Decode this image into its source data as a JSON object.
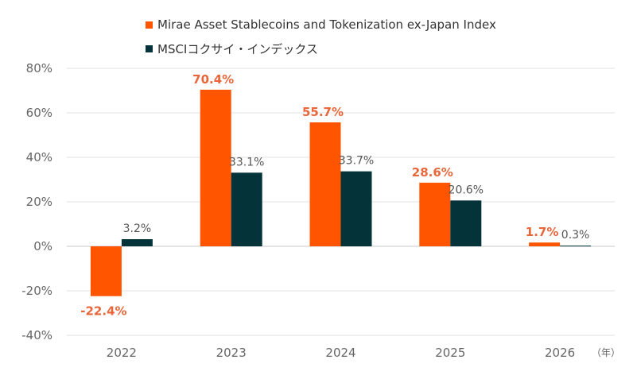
{
  "chart_data": {
    "type": "bar",
    "categories": [
      "2022",
      "2023",
      "2024",
      "2025",
      "2026"
    ],
    "series": [
      {
        "name": "Mirae Asset Stablecoins and Tokenization ex-Japan Index",
        "values": [
          -22.4,
          70.4,
          55.7,
          28.6,
          1.7
        ],
        "labels": [
          "-22.4%",
          "70.4%",
          "55.7%",
          "28.6%",
          "1.7%"
        ],
        "color": "#ff5500",
        "label_color": "#e8663a"
      },
      {
        "name": "MSCIコクサイ・インデックス",
        "values": [
          3.2,
          33.1,
          33.7,
          20.6,
          0.3
        ],
        "labels": [
          "3.2%",
          "33.1%",
          "33.7%",
          "20.6%",
          "0.3%"
        ],
        "color": "#05333a",
        "label_color": "#555555"
      }
    ],
    "ylim": [
      -40,
      80
    ],
    "yticks": [
      -40,
      -20,
      0,
      20,
      40,
      60,
      80
    ],
    "ytick_labels": [
      "-40%",
      "-20%",
      "0%",
      "20%",
      "40%",
      "60%",
      "80%"
    ],
    "xunit": "（年）",
    "grid": true,
    "legend_position": "top"
  }
}
